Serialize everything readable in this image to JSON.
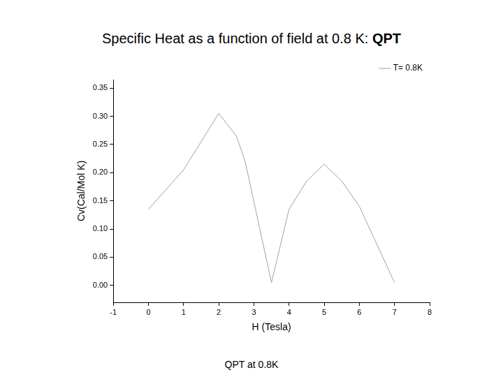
{
  "chart_data": {
    "type": "line",
    "title": "Specific Heat as a function of field at 0.8 K: QPT",
    "caption": "QPT at 0.8K",
    "x_label": "H (Tesla)",
    "y_label": "Cv(Cal/Mol K)",
    "x": [
      0,
      1,
      1.5,
      2,
      2.5,
      2.75,
      3.5,
      4,
      4.5,
      5,
      5.5,
      6,
      7
    ],
    "series": [
      {
        "name": "T= 0.8K",
        "color": "#a0a0a0",
        "values": [
          0.135,
          0.205,
          0.255,
          0.305,
          0.265,
          0.22,
          0.005,
          0.135,
          0.185,
          0.215,
          0.185,
          0.14,
          0.005
        ]
      }
    ],
    "xlim": [
      -1,
      8
    ],
    "xticks": [
      -1,
      0,
      1,
      2,
      3,
      4,
      5,
      6,
      7,
      8
    ],
    "ylim": [
      -0.03,
      0.365
    ],
    "yticks": [
      {
        "value": 0,
        "label": "0.00"
      },
      {
        "value": 0.05,
        "label": "0.05"
      },
      {
        "value": 0.1,
        "label": "0.10"
      },
      {
        "value": 0.15,
        "label": "0.15"
      },
      {
        "value": 0.2,
        "label": "0.20"
      },
      {
        "value": 0.25,
        "label": "0.25"
      },
      {
        "value": 0.3,
        "label": "0.30"
      },
      {
        "value": 0.35,
        "label": "0.35"
      }
    ],
    "grid": false,
    "legend": "top-right"
  }
}
